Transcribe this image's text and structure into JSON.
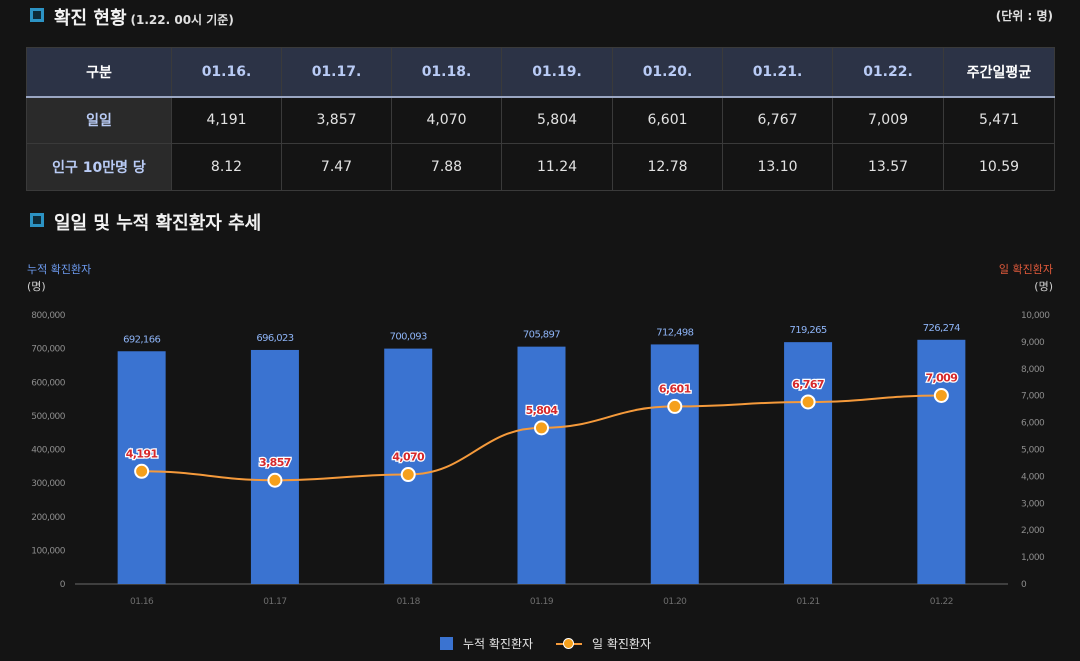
{
  "status": {
    "title": "확진 현황",
    "subtitle": "(1.22. 00시 기준)",
    "unit": "(단위 : 명)"
  },
  "table": {
    "headers": [
      "구분",
      "01.16.",
      "01.17.",
      "01.18.",
      "01.19.",
      "01.20.",
      "01.21.",
      "01.22.",
      "주간일평균"
    ],
    "rows": [
      {
        "label": "일일",
        "values": [
          "4,191",
          "3,857",
          "4,070",
          "5,804",
          "6,601",
          "6,767",
          "7,009",
          "5,471"
        ]
      },
      {
        "label": "인구 10만명 당",
        "values": [
          "8.12",
          "7.47",
          "7.88",
          "11.24",
          "12.78",
          "13.10",
          "13.57",
          "10.59"
        ]
      }
    ]
  },
  "trend": {
    "title": "일일 및 누적 확진환자 추세",
    "left_axis_title": "누적 확진환자",
    "left_axis_unit": "(명)",
    "right_axis_title": "일 확진환자",
    "right_axis_unit": "(명)"
  },
  "chart_data": {
    "type": "bar",
    "categories": [
      "01.16",
      "01.17",
      "01.18",
      "01.19",
      "01.20",
      "01.21",
      "01.22"
    ],
    "series": [
      {
        "name": "누적 확진환자",
        "type": "bar",
        "axis": "left",
        "values": [
          692166,
          696023,
          700093,
          705897,
          712498,
          719265,
          726274
        ],
        "labels": [
          "692,166",
          "696,023",
          "700,093",
          "705,897",
          "712,498",
          "719,265",
          "726,274"
        ],
        "color": "#3a73d1"
      },
      {
        "name": "일 확진환자",
        "type": "line",
        "axis": "right",
        "values": [
          4191,
          3857,
          4070,
          5804,
          6601,
          6767,
          7009
        ],
        "labels": [
          "4,191",
          "3,857",
          "4,070",
          "5,804",
          "6,601",
          "6,767",
          "7,009"
        ],
        "color": "#f59a3b"
      }
    ],
    "left_ticks": [
      "0",
      "100,000",
      "200,000",
      "300,000",
      "400,000",
      "500,000",
      "600,000",
      "700,000",
      "800,000"
    ],
    "right_ticks": [
      "0",
      "1,000",
      "2,000",
      "3,000",
      "4,000",
      "5,000",
      "6,000",
      "7,000",
      "8,000",
      "9,000",
      "10,000"
    ],
    "ylim_left": [
      0,
      800000
    ],
    "ylim_right": [
      0,
      10000
    ],
    "xlabel": "",
    "ylabel": "누적 확진환자",
    "ylabel_right": "일 확진환자",
    "legend": "bottom",
    "grid": false
  },
  "colors": {
    "bar": "#3a73d1",
    "line": "#f59a3b",
    "marker": "#f5a01c",
    "point_label": "#d6282b",
    "left_axis_title": "#6d9bf0",
    "right_axis_title": "#e25a3b",
    "header_bg": "#2c3346",
    "icon": "#2c93c4"
  },
  "icons": {
    "section": "square-bullet-icon"
  }
}
